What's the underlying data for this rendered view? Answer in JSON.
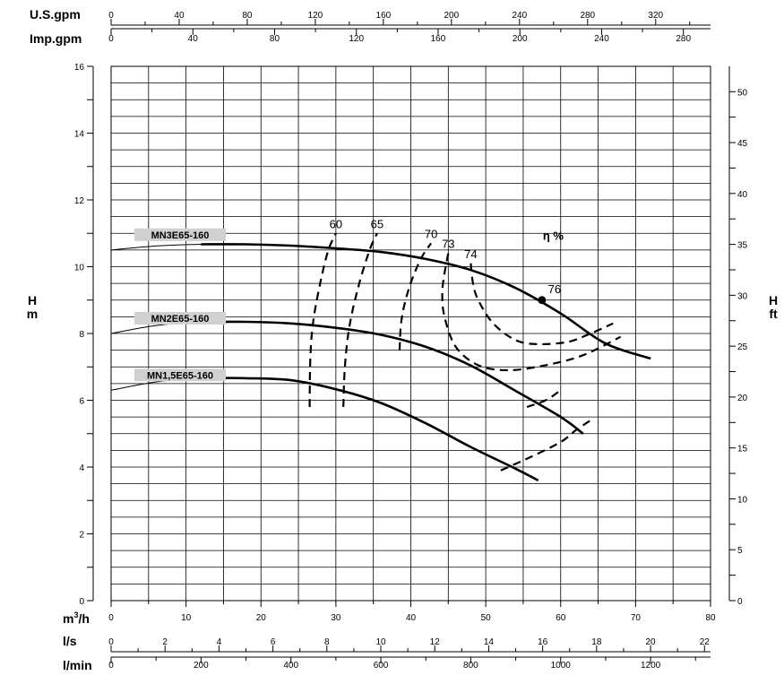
{
  "chart_data": {
    "type": "line",
    "x_unit": "m³/h",
    "xlim": [
      0,
      80
    ],
    "ylim": [
      0,
      16
    ],
    "ylim_right": [
      0,
      52.49
    ],
    "grid": true,
    "y_left_label": {
      "line1": "H",
      "line2": "m"
    },
    "y_right_label": {
      "line1": "H",
      "line2": "ft"
    },
    "y_left_ticks": [
      0,
      2,
      4,
      6,
      8,
      10,
      12,
      14,
      16
    ],
    "y_right_ticks": [
      0,
      5,
      10,
      15,
      20,
      25,
      30,
      35,
      40,
      45,
      50
    ],
    "x_axes": {
      "m3h": {
        "label_pre": "m",
        "label_sup": "3",
        "label_post": "/h",
        "factor": 1,
        "ticks": [
          0,
          10,
          20,
          30,
          40,
          50,
          60,
          70,
          80
        ]
      },
      "ls": {
        "label": "l/s",
        "factor": 0.2778,
        "ticks": [
          0,
          2,
          4,
          6,
          8,
          10,
          12,
          14,
          16,
          18,
          20,
          22
        ]
      },
      "lmin": {
        "label": "l/min",
        "factor": 16.667,
        "ticks": [
          0,
          200,
          400,
          600,
          800,
          1000,
          1200
        ]
      },
      "usgpm": {
        "label": "U.S.gpm",
        "factor": 4.403,
        "ticks": [
          0,
          40,
          80,
          120,
          160,
          200,
          240,
          280,
          320
        ]
      },
      "impgpm": {
        "label": "Imp.gpm",
        "factor": 3.666,
        "ticks": [
          0,
          40,
          80,
          120,
          160,
          200,
          240,
          280
        ]
      }
    },
    "series": [
      {
        "name": "MN3E65-160",
        "points": [
          [
            0,
            10.5
          ],
          [
            6,
            10.62
          ],
          [
            12,
            10.67
          ],
          [
            18,
            10.67
          ],
          [
            24,
            10.63
          ],
          [
            30,
            10.55
          ],
          [
            36,
            10.44
          ],
          [
            42,
            10.23
          ],
          [
            48,
            9.9
          ],
          [
            54,
            9.36
          ],
          [
            60,
            8.6
          ],
          [
            66,
            7.7
          ],
          [
            72,
            7.25
          ]
        ]
      },
      {
        "name": "MN2E65-160",
        "points": [
          [
            0,
            8.0
          ],
          [
            6,
            8.24
          ],
          [
            12,
            8.34
          ],
          [
            18,
            8.35
          ],
          [
            24,
            8.3
          ],
          [
            30,
            8.17
          ],
          [
            36,
            7.96
          ],
          [
            42,
            7.6
          ],
          [
            48,
            7.04
          ],
          [
            54,
            6.28
          ],
          [
            60,
            5.5
          ],
          [
            63,
            5.0
          ]
        ]
      },
      {
        "name": "MN1,5E65-160",
        "points": [
          [
            0,
            6.3
          ],
          [
            6,
            6.55
          ],
          [
            12,
            6.66
          ],
          [
            18,
            6.66
          ],
          [
            24,
            6.6
          ],
          [
            30,
            6.33
          ],
          [
            36,
            5.92
          ],
          [
            42,
            5.31
          ],
          [
            48,
            4.6
          ],
          [
            54,
            3.95
          ],
          [
            57,
            3.6
          ]
        ]
      }
    ],
    "efficiency": {
      "title": "η %",
      "contours": [
        {
          "label": "60",
          "points": [
            [
              26.5,
              5.8
            ],
            [
              26.6,
              7.3
            ],
            [
              27,
              8.4
            ],
            [
              28,
              9.6
            ],
            [
              29,
              10.5
            ],
            [
              30,
              11.0
            ]
          ]
        },
        {
          "label": "65",
          "points": [
            [
              31,
              5.8
            ],
            [
              31.2,
              7.0
            ],
            [
              31.8,
              8.2
            ],
            [
              33,
              9.4
            ],
            [
              34.5,
              10.5
            ],
            [
              35.5,
              11.0
            ]
          ]
        },
        {
          "label": "70",
          "points": [
            [
              38.5,
              7.5
            ],
            [
              38.7,
              8.3
            ],
            [
              39.3,
              9.0
            ],
            [
              40.3,
              9.7
            ],
            [
              41.5,
              10.3
            ],
            [
              42.7,
              10.7
            ]
          ]
        },
        {
          "label": "73",
          "points": [
            [
              45,
              10.4
            ],
            [
              44.5,
              9.8
            ],
            [
              44.2,
              9.2
            ],
            [
              44.5,
              8.5
            ],
            [
              46,
              7.6
            ],
            [
              49,
              7.05
            ],
            [
              53,
              6.9
            ],
            [
              58,
              7.05
            ],
            [
              63,
              7.35
            ],
            [
              68,
              7.9
            ]
          ]
        },
        {
          "label": "74",
          "points": [
            [
              48,
              10.1
            ],
            [
              48.3,
              9.5
            ],
            [
              49,
              9.0
            ],
            [
              51,
              8.3
            ],
            [
              54,
              7.8
            ],
            [
              57,
              7.68
            ],
            [
              61,
              7.75
            ],
            [
              64,
              8.0
            ],
            [
              67,
              8.3
            ]
          ]
        },
        {
          "label": "",
          "points": [
            [
              55.5,
              5.8
            ],
            [
              58,
              6.0
            ],
            [
              60,
              6.3
            ]
          ]
        },
        {
          "label": "",
          "points": [
            [
              52,
              3.9
            ],
            [
              56,
              4.3
            ],
            [
              60,
              4.75
            ],
            [
              62,
              5.1
            ],
            [
              64,
              5.4
            ]
          ]
        }
      ],
      "best_point": {
        "label": "76",
        "x": 57.5,
        "y": 9.0
      }
    }
  }
}
